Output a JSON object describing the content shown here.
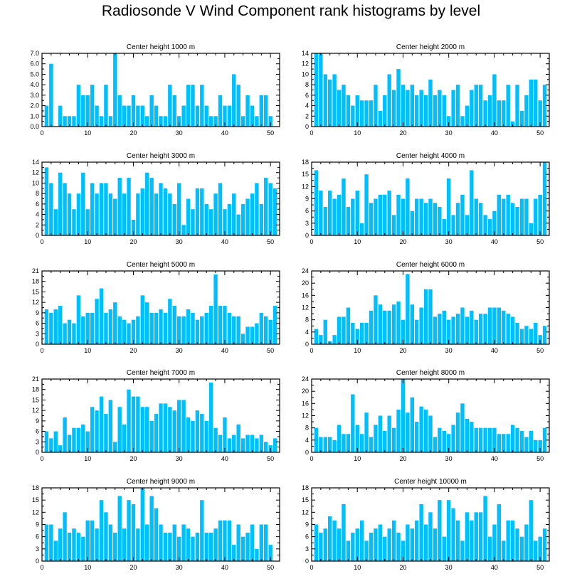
{
  "title": "Radiosonde V Wind Component rank histograms by level",
  "colors": {
    "bar": "#00bfff",
    "axis": "#000000",
    "background": "#ffffff"
  },
  "chart_data": [
    {
      "type": "bar",
      "title": "Center height 1000 m",
      "xlabel": "",
      "ylabel": "",
      "xlim": [
        0,
        52
      ],
      "ylim": [
        0,
        7
      ],
      "yticks": [
        0,
        1,
        2,
        3,
        4,
        5,
        6,
        7
      ],
      "ytick_labels": [
        "0.0",
        "1.0",
        "2.0",
        "3.0",
        "4.0",
        "5.0",
        "6.0",
        "7.0"
      ],
      "xticks": [
        0,
        10,
        20,
        30,
        40,
        50
      ],
      "xtick_labels": [
        "0",
        "10",
        "20",
        "30",
        "40",
        "50"
      ],
      "categories": [
        1,
        2,
        3,
        4,
        5,
        6,
        7,
        8,
        9,
        10,
        11,
        12,
        13,
        14,
        15,
        16,
        17,
        18,
        19,
        20,
        21,
        22,
        23,
        24,
        25,
        26,
        27,
        28,
        29,
        30,
        31,
        32,
        33,
        34,
        35,
        36,
        37,
        38,
        39,
        40,
        41,
        42,
        43,
        44,
        45,
        46,
        47,
        48,
        49,
        50,
        51
      ],
      "values": [
        2,
        6,
        0,
        2,
        1,
        1,
        1,
        4,
        3,
        3,
        4,
        2,
        1,
        4,
        1,
        7,
        3,
        2,
        2,
        3,
        2,
        2,
        1,
        3,
        2,
        1,
        1,
        4,
        3,
        1,
        2,
        4,
        4,
        2,
        4,
        2,
        1,
        1,
        3,
        2,
        2,
        5,
        4,
        1,
        3,
        2,
        1,
        3,
        3,
        1,
        0
      ]
    },
    {
      "type": "bar",
      "title": "Center height 2000 m",
      "xlabel": "",
      "ylabel": "",
      "xlim": [
        0,
        52
      ],
      "ylim": [
        0,
        14
      ],
      "yticks": [
        0,
        2,
        4,
        6,
        8,
        10,
        12,
        14
      ],
      "ytick_labels": [
        "0",
        "2",
        "4",
        "6",
        "8",
        "10",
        "12",
        "14"
      ],
      "xticks": [
        0,
        10,
        20,
        30,
        40,
        50
      ],
      "xtick_labels": [
        "0",
        "10",
        "20",
        "30",
        "40",
        "50"
      ],
      "categories": [
        1,
        2,
        3,
        4,
        5,
        6,
        7,
        8,
        9,
        10,
        11,
        12,
        13,
        14,
        15,
        16,
        17,
        18,
        19,
        20,
        21,
        22,
        23,
        24,
        25,
        26,
        27,
        28,
        29,
        30,
        31,
        32,
        33,
        34,
        35,
        36,
        37,
        38,
        39,
        40,
        41,
        42,
        43,
        44,
        45,
        46,
        47,
        48,
        49,
        50,
        51
      ],
      "values": [
        14,
        14,
        10,
        9,
        10,
        7,
        8,
        6,
        4,
        6,
        5,
        5,
        5,
        8,
        3,
        6,
        10,
        7,
        11,
        8,
        7,
        8,
        6,
        7,
        6,
        9,
        6,
        7,
        6,
        2,
        7,
        8,
        2,
        4,
        7,
        8,
        8,
        5,
        6,
        10,
        5,
        5,
        8,
        1,
        8,
        3,
        6,
        9,
        9,
        5,
        8
      ]
    },
    {
      "type": "bar",
      "title": "Center height 3000 m",
      "xlabel": "",
      "ylabel": "",
      "xlim": [
        0,
        52
      ],
      "ylim": [
        0,
        14
      ],
      "yticks": [
        0,
        2,
        4,
        6,
        8,
        10,
        12,
        14
      ],
      "ytick_labels": [
        "0",
        "2",
        "4",
        "6",
        "8",
        "10",
        "12",
        "14"
      ],
      "xticks": [
        0,
        10,
        20,
        30,
        40,
        50
      ],
      "xtick_labels": [
        "0",
        "10",
        "20",
        "30",
        "40",
        "50"
      ],
      "categories": [
        1,
        2,
        3,
        4,
        5,
        6,
        7,
        8,
        9,
        10,
        11,
        12,
        13,
        14,
        15,
        16,
        17,
        18,
        19,
        20,
        21,
        22,
        23,
        24,
        25,
        26,
        27,
        28,
        29,
        30,
        31,
        32,
        33,
        34,
        35,
        36,
        37,
        38,
        39,
        40,
        41,
        42,
        43,
        44,
        45,
        46,
        47,
        48,
        49,
        50,
        51
      ],
      "values": [
        13,
        10,
        5,
        12,
        10,
        8,
        5,
        8,
        12,
        5,
        10,
        8,
        10,
        10,
        8,
        7,
        11,
        8,
        11,
        3,
        8,
        9,
        12,
        11,
        8,
        10,
        9,
        8,
        6,
        10,
        2,
        7,
        5,
        9,
        9,
        6,
        5,
        8,
        10,
        5,
        6,
        8,
        4,
        6,
        7,
        8,
        10,
        6,
        11,
        10,
        9
      ]
    },
    {
      "type": "bar",
      "title": "Center height 4000 m",
      "xlabel": "",
      "ylabel": "",
      "xlim": [
        0,
        52
      ],
      "ylim": [
        0,
        18
      ],
      "yticks": [
        0,
        3,
        6,
        9,
        12,
        15,
        18
      ],
      "ytick_labels": [
        "0",
        "3",
        "6",
        "9",
        "12",
        "15",
        "18"
      ],
      "xticks": [
        0,
        10,
        20,
        30,
        40,
        50
      ],
      "xtick_labels": [
        "0",
        "10",
        "20",
        "30",
        "40",
        "50"
      ],
      "categories": [
        1,
        2,
        3,
        4,
        5,
        6,
        7,
        8,
        9,
        10,
        11,
        12,
        13,
        14,
        15,
        16,
        17,
        18,
        19,
        20,
        21,
        22,
        23,
        24,
        25,
        26,
        27,
        28,
        29,
        30,
        31,
        32,
        33,
        34,
        35,
        36,
        37,
        38,
        39,
        40,
        41,
        42,
        43,
        44,
        45,
        46,
        47,
        48,
        49,
        50,
        51
      ],
      "values": [
        16,
        11,
        7,
        11,
        9,
        10,
        14,
        7,
        9,
        11,
        3,
        15,
        8,
        9,
        10,
        10,
        11,
        5,
        10,
        9,
        14,
        6,
        9,
        9,
        8,
        9,
        8,
        7,
        4,
        14,
        5,
        8,
        10,
        5,
        16,
        9,
        8,
        5,
        4,
        6,
        10,
        9,
        10,
        8,
        7,
        9,
        9,
        3,
        9,
        10,
        18
      ]
    },
    {
      "type": "bar",
      "title": "Center height 5000 m",
      "xlabel": "",
      "ylabel": "",
      "xlim": [
        0,
        52
      ],
      "ylim": [
        0,
        21
      ],
      "yticks": [
        0,
        3,
        6,
        9,
        12,
        15,
        18,
        21
      ],
      "ytick_labels": [
        "0",
        "3",
        "6",
        "9",
        "12",
        "15",
        "18",
        "21"
      ],
      "xticks": [
        0,
        10,
        20,
        30,
        40,
        50
      ],
      "xtick_labels": [
        "0",
        "10",
        "20",
        "30",
        "40",
        "50"
      ],
      "categories": [
        1,
        2,
        3,
        4,
        5,
        6,
        7,
        8,
        9,
        10,
        11,
        12,
        13,
        14,
        15,
        16,
        17,
        18,
        19,
        20,
        21,
        22,
        23,
        24,
        25,
        26,
        27,
        28,
        29,
        30,
        31,
        32,
        33,
        34,
        35,
        36,
        37,
        38,
        39,
        40,
        41,
        42,
        43,
        44,
        45,
        46,
        47,
        48,
        49,
        50,
        51
      ],
      "values": [
        10,
        9,
        10,
        11,
        6,
        7,
        6,
        14,
        8,
        9,
        9,
        13,
        16,
        9,
        10,
        12,
        8,
        7,
        6,
        7,
        8,
        14,
        12,
        9,
        9,
        10,
        9,
        13,
        11,
        8,
        8,
        10,
        9,
        7,
        8,
        9,
        11,
        20,
        11,
        11,
        9,
        8,
        8,
        3,
        5,
        5,
        6,
        9,
        8,
        7,
        11
      ]
    },
    {
      "type": "bar",
      "title": "Center height 6000 m",
      "xlabel": "",
      "ylabel": "",
      "xlim": [
        0,
        52
      ],
      "ylim": [
        0,
        24
      ],
      "yticks": [
        0,
        4,
        8,
        12,
        16,
        20,
        24
      ],
      "ytick_labels": [
        "0",
        "4",
        "8",
        "12",
        "16",
        "20",
        "24"
      ],
      "xticks": [
        0,
        10,
        20,
        30,
        40,
        50
      ],
      "xtick_labels": [
        "0",
        "10",
        "20",
        "30",
        "40",
        "50"
      ],
      "categories": [
        1,
        2,
        3,
        4,
        5,
        6,
        7,
        8,
        9,
        10,
        11,
        12,
        13,
        14,
        15,
        16,
        17,
        18,
        19,
        20,
        21,
        22,
        23,
        24,
        25,
        26,
        27,
        28,
        29,
        30,
        31,
        32,
        33,
        34,
        35,
        36,
        37,
        38,
        39,
        40,
        41,
        42,
        43,
        44,
        45,
        46,
        47,
        48,
        49,
        50,
        51
      ],
      "values": [
        5,
        3,
        8,
        1,
        3,
        9,
        9,
        12,
        7,
        5,
        7,
        7,
        11,
        16,
        13,
        11,
        11,
        13,
        14,
        8,
        23,
        13,
        8,
        12,
        18,
        18,
        9,
        10,
        11,
        8,
        9,
        10,
        12,
        9,
        11,
        8,
        10,
        10,
        12,
        12,
        12,
        11,
        10,
        9,
        7,
        5,
        6,
        5,
        7,
        3,
        6
      ]
    },
    {
      "type": "bar",
      "title": "Center height 7000 m",
      "xlabel": "",
      "ylabel": "",
      "xlim": [
        0,
        52
      ],
      "ylim": [
        0,
        21
      ],
      "yticks": [
        0,
        3,
        6,
        9,
        12,
        15,
        18,
        21
      ],
      "ytick_labels": [
        "0",
        "3",
        "6",
        "9",
        "12",
        "15",
        "18",
        "21"
      ],
      "xticks": [
        0,
        10,
        20,
        30,
        40,
        50
      ],
      "xtick_labels": [
        "0",
        "10",
        "20",
        "30",
        "40",
        "50"
      ],
      "categories": [
        1,
        2,
        3,
        4,
        5,
        6,
        7,
        8,
        9,
        10,
        11,
        12,
        13,
        14,
        15,
        16,
        17,
        18,
        19,
        20,
        21,
        22,
        23,
        24,
        25,
        26,
        27,
        28,
        29,
        30,
        31,
        32,
        33,
        34,
        35,
        36,
        37,
        38,
        39,
        40,
        41,
        42,
        43,
        44,
        45,
        46,
        47,
        48,
        49,
        50,
        51
      ],
      "values": [
        6,
        4,
        6,
        2,
        10,
        5,
        7,
        7,
        8,
        6,
        13,
        12,
        16,
        11,
        15,
        3,
        13,
        8,
        18,
        16,
        16,
        13,
        13,
        9,
        11,
        14,
        14,
        13,
        12,
        15,
        15,
        10,
        9,
        12,
        11,
        9,
        20,
        7,
        5,
        10,
        4,
        5,
        8,
        4,
        5,
        5,
        4,
        5,
        3,
        2,
        4
      ]
    },
    {
      "type": "bar",
      "title": "Center height 8000 m",
      "xlabel": "",
      "ylabel": "",
      "xlim": [
        0,
        52
      ],
      "ylim": [
        0,
        24
      ],
      "yticks": [
        0,
        4,
        8,
        12,
        16,
        20,
        24
      ],
      "ytick_labels": [
        "0",
        "4",
        "8",
        "12",
        "16",
        "20",
        "24"
      ],
      "xticks": [
        0,
        10,
        20,
        30,
        40,
        50
      ],
      "xtick_labels": [
        "0",
        "10",
        "20",
        "30",
        "40",
        "50"
      ],
      "categories": [
        1,
        2,
        3,
        4,
        5,
        6,
        7,
        8,
        9,
        10,
        11,
        12,
        13,
        14,
        15,
        16,
        17,
        18,
        19,
        20,
        21,
        22,
        23,
        24,
        25,
        26,
        27,
        28,
        29,
        30,
        31,
        32,
        33,
        34,
        35,
        36,
        37,
        38,
        39,
        40,
        41,
        42,
        43,
        44,
        45,
        46,
        47,
        48,
        49,
        50,
        51
      ],
      "values": [
        8,
        5,
        5,
        5,
        4,
        9,
        6,
        6,
        19,
        9,
        6,
        13,
        5,
        9,
        12,
        7,
        12,
        8,
        14,
        24,
        13,
        18,
        10,
        15,
        14,
        12,
        5,
        8,
        7,
        6,
        9,
        13,
        16,
        11,
        10,
        8,
        8,
        8,
        8,
        8,
        6,
        6,
        6,
        9,
        8,
        7,
        5,
        7,
        4,
        4,
        8
      ]
    },
    {
      "type": "bar",
      "title": "Center height 9000 m",
      "xlabel": "",
      "ylabel": "",
      "xlim": [
        0,
        52
      ],
      "ylim": [
        0,
        18
      ],
      "yticks": [
        0,
        3,
        6,
        9,
        12,
        15,
        18
      ],
      "ytick_labels": [
        "0",
        "3",
        "6",
        "9",
        "12",
        "15",
        "18"
      ],
      "xticks": [
        0,
        10,
        20,
        30,
        40,
        50
      ],
      "xtick_labels": [
        "0",
        "10",
        "20",
        "30",
        "40",
        "50"
      ],
      "categories": [
        1,
        2,
        3,
        4,
        5,
        6,
        7,
        8,
        9,
        10,
        11,
        12,
        13,
        14,
        15,
        16,
        17,
        18,
        19,
        20,
        21,
        22,
        23,
        24,
        25,
        26,
        27,
        28,
        29,
        30,
        31,
        32,
        33,
        34,
        35,
        36,
        37,
        38,
        39,
        40,
        41,
        42,
        43,
        44,
        45,
        46,
        47,
        48,
        49,
        50,
        51
      ],
      "values": [
        9,
        9,
        5,
        8,
        12,
        7,
        8,
        7,
        6,
        10,
        10,
        8,
        15,
        12,
        9,
        7,
        16,
        8,
        15,
        14,
        8,
        18,
        9,
        16,
        13,
        9,
        7,
        7,
        9,
        6,
        9,
        8,
        6,
        7,
        15,
        7,
        7,
        8,
        10,
        10,
        10,
        4,
        9,
        6,
        7,
        9,
        3,
        9,
        9,
        4,
        0
      ]
    },
    {
      "type": "bar",
      "title": "Center height 10000 m",
      "xlabel": "",
      "ylabel": "",
      "xlim": [
        0,
        52
      ],
      "ylim": [
        0,
        18
      ],
      "yticks": [
        0,
        3,
        6,
        9,
        12,
        15,
        18
      ],
      "ytick_labels": [
        "0",
        "3",
        "6",
        "9",
        "12",
        "15",
        "18"
      ],
      "xticks": [
        0,
        10,
        20,
        30,
        40,
        50
      ],
      "xtick_labels": [
        "0",
        "10",
        "20",
        "30",
        "40",
        "50"
      ],
      "categories": [
        1,
        2,
        3,
        4,
        5,
        6,
        7,
        8,
        9,
        10,
        11,
        12,
        13,
        14,
        15,
        16,
        17,
        18,
        19,
        20,
        21,
        22,
        23,
        24,
        25,
        26,
        27,
        28,
        29,
        30,
        31,
        32,
        33,
        34,
        35,
        36,
        37,
        38,
        39,
        40,
        41,
        42,
        43,
        44,
        45,
        46,
        47,
        48,
        49,
        50,
        51
      ],
      "values": [
        9,
        7,
        8,
        11,
        10,
        8,
        14,
        5,
        7,
        8,
        10,
        5,
        7,
        8,
        9,
        6,
        8,
        10,
        7,
        5,
        9,
        8,
        10,
        14,
        9,
        12,
        8,
        15,
        6,
        15,
        13,
        10,
        5,
        12,
        10,
        12,
        12,
        16,
        6,
        9,
        14,
        5,
        10,
        10,
        8,
        6,
        9,
        15,
        5,
        6,
        8
      ]
    }
  ]
}
